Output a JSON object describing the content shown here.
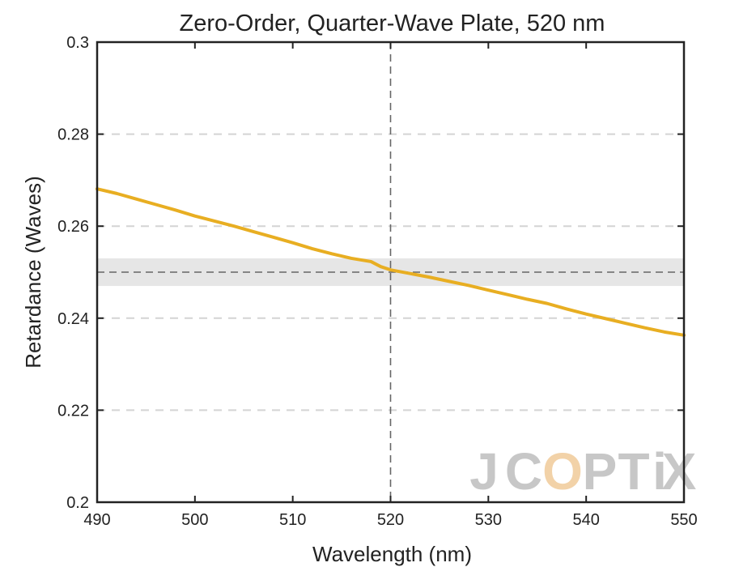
{
  "chart_data": {
    "type": "line",
    "title": "Zero-Order, Quarter-Wave Plate, 520 nm",
    "xlabel": "Wavelength (nm)",
    "ylabel": "Retardance (Waves)",
    "xlim": [
      490,
      550
    ],
    "ylim": [
      0.2,
      0.3
    ],
    "xticks": [
      "490",
      "500",
      "510",
      "520",
      "530",
      "540",
      "550"
    ],
    "yticks": [
      "0.2",
      "0.22",
      "0.24",
      "0.26",
      "0.28",
      "0.3"
    ],
    "grid": "horizontal-dashed",
    "reference_lines": {
      "x": 520,
      "y": 0.25
    },
    "tolerance_band": [
      0.247,
      0.253
    ],
    "series": [
      {
        "x": [
          490,
          492,
          494,
          496,
          498,
          500,
          502,
          504,
          506,
          508,
          510,
          512,
          514,
          516,
          518,
          519,
          520,
          521,
          522,
          524,
          526,
          528,
          530,
          532,
          534,
          536,
          538,
          540,
          542,
          544,
          546,
          548,
          550
        ],
        "y": [
          0.2681,
          0.2671,
          0.2659,
          0.2647,
          0.2635,
          0.2622,
          0.2611,
          0.26,
          0.2588,
          0.2576,
          0.2564,
          0.2551,
          0.254,
          0.253,
          0.2523,
          0.2512,
          0.2505,
          0.2501,
          0.2497,
          0.2489,
          0.248,
          0.2471,
          0.2461,
          0.2451,
          0.2441,
          0.2432,
          0.242,
          0.2409,
          0.2399,
          0.2389,
          0.2379,
          0.237,
          0.2363
        ]
      }
    ],
    "colors": {
      "line": "#e8ae22",
      "axes": "#222222",
      "grid": "#d4d4d4",
      "band": "#e6e6e6",
      "reference": "#666666",
      "watermark_gray": "#c7c7c7",
      "watermark_accent": "#f2d2a8"
    }
  },
  "watermark": {
    "text": "JCOPTIX",
    "letters": [
      "J",
      "C",
      "O",
      "P",
      "T",
      "i",
      "X"
    ]
  }
}
